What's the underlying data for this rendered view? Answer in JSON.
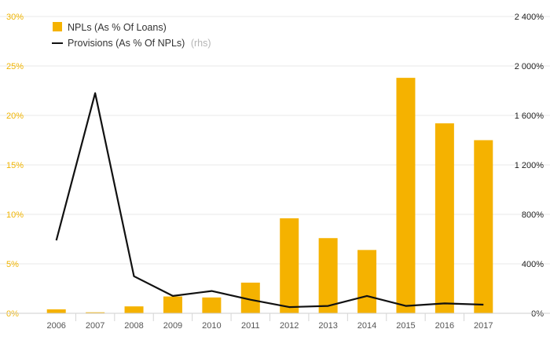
{
  "chart_data": {
    "type": "bar+line",
    "categories": [
      "2006",
      "2007",
      "2008",
      "2009",
      "2010",
      "2011",
      "2012",
      "2013",
      "2014",
      "2015",
      "2016",
      "2017"
    ],
    "series": [
      {
        "name": "NPLs (As % Of Loans)",
        "type": "bar",
        "axis": "left",
        "values": [
          0.4,
          0.1,
          0.7,
          1.7,
          1.6,
          3.1,
          9.6,
          7.6,
          6.4,
          23.8,
          19.2,
          17.5
        ]
      },
      {
        "name": "Provisions (As % Of NPLs)",
        "name_suffix": "(rhs)",
        "type": "line",
        "axis": "right",
        "values": [
          590,
          1780,
          300,
          140,
          180,
          110,
          50,
          60,
          140,
          60,
          80,
          70
        ]
      }
    ],
    "ylim_left": [
      0,
      30
    ],
    "ylim_right": [
      0,
      2400
    ],
    "yticks_left": [
      "0%",
      "5%",
      "10%",
      "15%",
      "20%",
      "25%",
      "30%"
    ],
    "yticks_right": [
      "0%",
      "400%",
      "800%",
      "1 200%",
      "1 600%",
      "2 000%",
      "2 400%"
    ],
    "grid": true,
    "legend_position": "top-left",
    "colors": {
      "bar": "#f5b200",
      "line": "#111111",
      "left_axis": "#f0b400",
      "grid": "#e8e8e8"
    }
  }
}
